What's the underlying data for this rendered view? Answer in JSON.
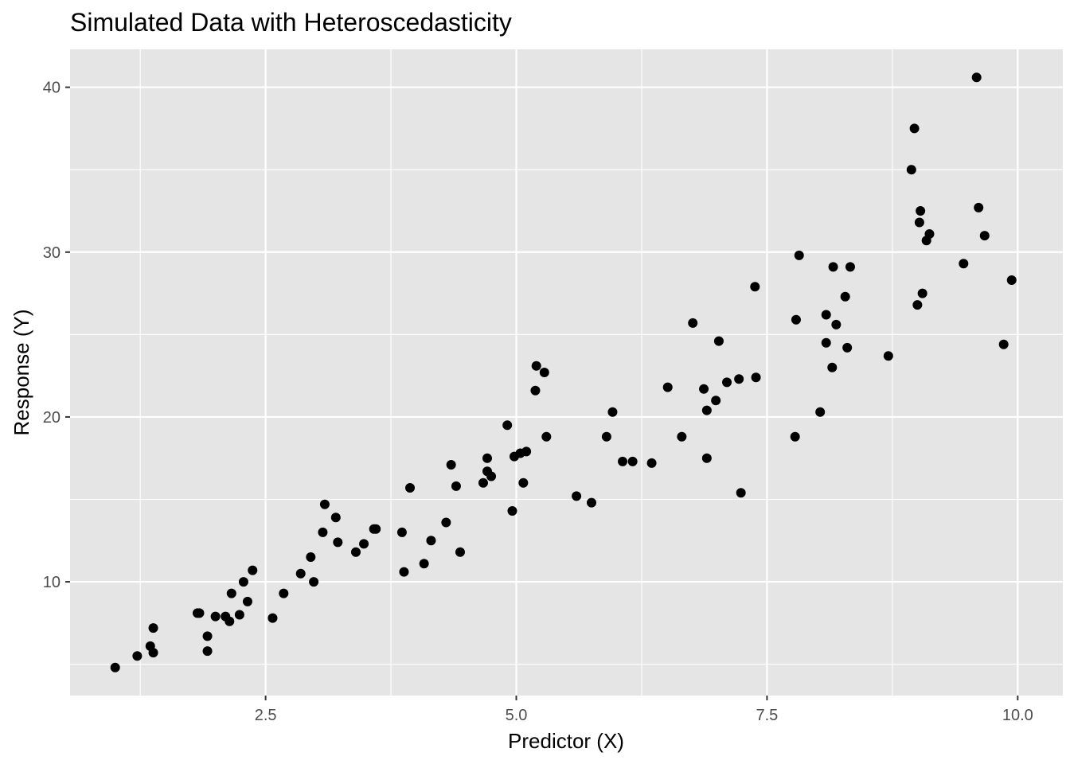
{
  "chart_data": {
    "type": "scatter",
    "title": "Simulated Data with Heteroscedasticity",
    "xlabel": "Predictor (X)",
    "ylabel": "Response (Y)",
    "xlim": [
      0.55,
      10.45
    ],
    "ylim": [
      3.1,
      42.3
    ],
    "x_ticks": [
      2.5,
      5.0,
      7.5,
      10.0
    ],
    "x_tick_labels": [
      "2.5",
      "5.0",
      "7.5",
      "10.0"
    ],
    "y_ticks": [
      10,
      20,
      30,
      40
    ],
    "y_tick_labels": [
      "10",
      "20",
      "30",
      "40"
    ],
    "grid": true,
    "legend": "none",
    "colors": {
      "panel": "#e5e5e5",
      "grid": "#ffffff",
      "point": "#000000",
      "tick": "#333333"
    },
    "points": [
      [
        1.0,
        4.8
      ],
      [
        1.22,
        5.5
      ],
      [
        1.35,
        6.1
      ],
      [
        1.38,
        7.2
      ],
      [
        1.38,
        5.7
      ],
      [
        1.82,
        8.1
      ],
      [
        1.84,
        8.1
      ],
      [
        1.92,
        5.8
      ],
      [
        1.92,
        6.7
      ],
      [
        2.0,
        7.9
      ],
      [
        2.1,
        7.9
      ],
      [
        2.14,
        7.6
      ],
      [
        2.16,
        9.3
      ],
      [
        2.24,
        8.0
      ],
      [
        2.28,
        10.0
      ],
      [
        2.32,
        8.8
      ],
      [
        2.37,
        10.7
      ],
      [
        2.57,
        7.8
      ],
      [
        2.68,
        9.3
      ],
      [
        2.85,
        10.5
      ],
      [
        2.95,
        11.5
      ],
      [
        2.98,
        10.0
      ],
      [
        3.07,
        13.0
      ],
      [
        3.09,
        14.7
      ],
      [
        3.2,
        13.9
      ],
      [
        3.22,
        12.4
      ],
      [
        3.4,
        11.8
      ],
      [
        3.48,
        12.3
      ],
      [
        3.58,
        13.2
      ],
      [
        3.6,
        13.2
      ],
      [
        3.86,
        13.0
      ],
      [
        3.88,
        10.6
      ],
      [
        3.94,
        15.7
      ],
      [
        4.08,
        11.1
      ],
      [
        4.15,
        12.5
      ],
      [
        4.3,
        13.6
      ],
      [
        4.35,
        17.1
      ],
      [
        4.4,
        15.8
      ],
      [
        4.44,
        11.8
      ],
      [
        4.67,
        16.0
      ],
      [
        4.71,
        17.5
      ],
      [
        4.71,
        16.7
      ],
      [
        4.75,
        16.4
      ],
      [
        4.91,
        19.5
      ],
      [
        4.96,
        14.3
      ],
      [
        4.98,
        17.6
      ],
      [
        5.04,
        17.8
      ],
      [
        5.07,
        16.0
      ],
      [
        5.1,
        17.9
      ],
      [
        5.19,
        21.6
      ],
      [
        5.2,
        23.1
      ],
      [
        5.28,
        22.7
      ],
      [
        5.3,
        18.8
      ],
      [
        5.6,
        15.2
      ],
      [
        5.75,
        14.8
      ],
      [
        5.9,
        18.8
      ],
      [
        5.96,
        20.3
      ],
      [
        6.06,
        17.3
      ],
      [
        6.16,
        17.3
      ],
      [
        6.35,
        17.2
      ],
      [
        6.51,
        21.8
      ],
      [
        6.65,
        18.8
      ],
      [
        6.76,
        25.7
      ],
      [
        6.87,
        21.7
      ],
      [
        6.9,
        20.4
      ],
      [
        6.9,
        17.5
      ],
      [
        6.99,
        21.0
      ],
      [
        7.02,
        24.6
      ],
      [
        7.1,
        22.1
      ],
      [
        7.22,
        22.3
      ],
      [
        7.24,
        15.4
      ],
      [
        7.38,
        27.9
      ],
      [
        7.39,
        22.4
      ],
      [
        7.78,
        18.8
      ],
      [
        7.79,
        25.9
      ],
      [
        7.82,
        29.8
      ],
      [
        8.03,
        20.3
      ],
      [
        8.09,
        24.5
      ],
      [
        8.09,
        26.2
      ],
      [
        8.15,
        23.0
      ],
      [
        8.16,
        29.1
      ],
      [
        8.19,
        25.6
      ],
      [
        8.28,
        27.3
      ],
      [
        8.3,
        24.2
      ],
      [
        8.33,
        29.1
      ],
      [
        8.71,
        23.7
      ],
      [
        8.94,
        35.0
      ],
      [
        8.97,
        37.5
      ],
      [
        9.0,
        26.8
      ],
      [
        9.02,
        31.8
      ],
      [
        9.03,
        32.5
      ],
      [
        9.05,
        27.5
      ],
      [
        9.09,
        30.7
      ],
      [
        9.12,
        31.1
      ],
      [
        9.46,
        29.3
      ],
      [
        9.59,
        40.6
      ],
      [
        9.61,
        32.7
      ],
      [
        9.67,
        31.0
      ],
      [
        9.86,
        24.4
      ],
      [
        9.94,
        28.3
      ]
    ]
  }
}
